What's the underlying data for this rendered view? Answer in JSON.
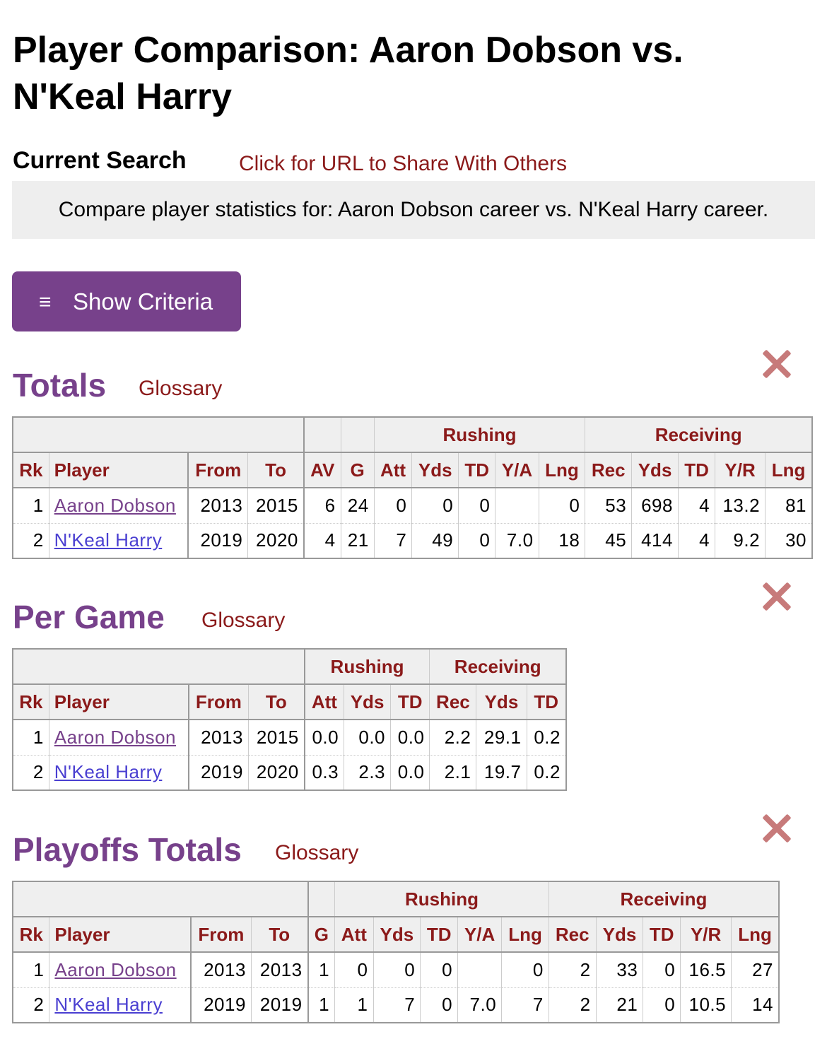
{
  "page_title": "Player Comparison: Aaron Dobson vs. N'Keal Harry",
  "current_search": {
    "label": "Current Search",
    "share_link": "Click for URL to Share With Others",
    "description": "Compare player statistics for: Aaron Dobson career vs. N'Keal Harry career."
  },
  "criteria_button": {
    "icon": "≡",
    "label": "Show Criteria"
  },
  "colors": {
    "accent": "#77418b",
    "link": "#8b1a1a",
    "close": "#c77a7a"
  },
  "totals": {
    "title": "Totals",
    "glossary": "Glossary",
    "groups": {
      "rushing": "Rushing",
      "receiving": "Receiving"
    },
    "headers": [
      "Rk",
      "Player",
      "From",
      "To",
      "AV",
      "G",
      "Att",
      "Yds",
      "TD",
      "Y/A",
      "Lng",
      "Rec",
      "Yds",
      "TD",
      "Y/R",
      "Lng"
    ],
    "rows": [
      [
        "1",
        "Aaron Dobson",
        "2013",
        "2015",
        "6",
        "24",
        "0",
        "0",
        "0",
        "",
        "0",
        "53",
        "698",
        "4",
        "13.2",
        "81"
      ],
      [
        "2",
        "N'Keal Harry",
        "2019",
        "2020",
        "4",
        "21",
        "7",
        "49",
        "0",
        "7.0",
        "18",
        "45",
        "414",
        "4",
        "9.2",
        "30"
      ]
    ]
  },
  "per_game": {
    "title": "Per Game",
    "glossary": "Glossary",
    "groups": {
      "rushing": "Rushing",
      "receiving": "Receiving"
    },
    "headers": [
      "Rk",
      "Player",
      "From",
      "To",
      "Att",
      "Yds",
      "TD",
      "Rec",
      "Yds",
      "TD"
    ],
    "rows": [
      [
        "1",
        "Aaron Dobson",
        "2013",
        "2015",
        "0.0",
        "0.0",
        "0.0",
        "2.2",
        "29.1",
        "0.2"
      ],
      [
        "2",
        "N'Keal Harry",
        "2019",
        "2020",
        "0.3",
        "2.3",
        "0.0",
        "2.1",
        "19.7",
        "0.2"
      ]
    ]
  },
  "playoffs": {
    "title": "Playoffs Totals",
    "glossary": "Glossary",
    "groups": {
      "rushing": "Rushing",
      "receiving": "Receiving"
    },
    "headers": [
      "Rk",
      "Player",
      "From",
      "To",
      "G",
      "Att",
      "Yds",
      "TD",
      "Y/A",
      "Lng",
      "Rec",
      "Yds",
      "TD",
      "Y/R",
      "Lng"
    ],
    "rows": [
      [
        "1",
        "Aaron Dobson",
        "2013",
        "2013",
        "1",
        "0",
        "0",
        "0",
        "",
        "0",
        "2",
        "33",
        "0",
        "16.5",
        "27"
      ],
      [
        "2",
        "N'Keal Harry",
        "2019",
        "2019",
        "1",
        "1",
        "7",
        "0",
        "7.0",
        "7",
        "2",
        "21",
        "0",
        "10.5",
        "14"
      ]
    ]
  }
}
